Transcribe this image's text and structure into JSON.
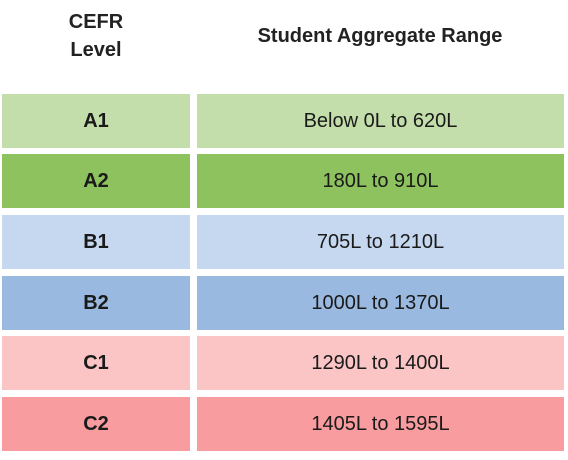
{
  "header": {
    "level_line1": "CEFR",
    "level_line2": "Level",
    "range": "Student Aggregate Range"
  },
  "rows": [
    {
      "level": "A1",
      "range": "Below 0L to 620L",
      "color": "#c3deaa"
    },
    {
      "level": "A2",
      "range": "180L to 910L",
      "color": "#8ec25f"
    },
    {
      "level": "B1",
      "range": "705L to 1210L",
      "color": "#c5d8ef"
    },
    {
      "level": "B2",
      "range": "1000L to 1370L",
      "color": "#9ab9e0"
    },
    {
      "level": "C1",
      "range": "1290L to 1400L",
      "color": "#fbc5c6"
    },
    {
      "level": "C2",
      "range": "1405L to 1595L",
      "color": "#f89c9f"
    }
  ]
}
